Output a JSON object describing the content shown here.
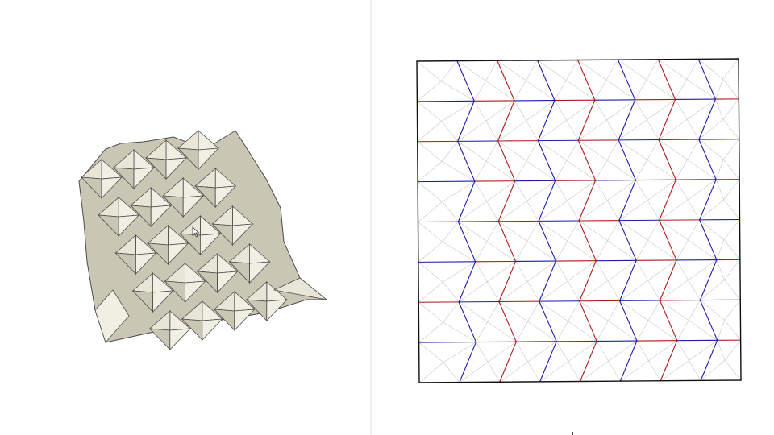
{
  "views": {
    "folded_model": {
      "caption": "",
      "paper_color": "#e9e6d8",
      "shade_light": "#f1efe3",
      "shade_dark": "#c9c6b4",
      "edge_color": "#4b4b4b",
      "columns": 4,
      "rows": 5
    },
    "crease_pattern": {
      "caption": "",
      "columns": 8,
      "rows": 8,
      "border_color": "#111111",
      "mountain_color": "#b01818",
      "valley_color": "#1a1ab0",
      "guide_color": "#c8c8c8"
    }
  },
  "cursor": {
    "icon": "arrow-cursor-icon"
  }
}
